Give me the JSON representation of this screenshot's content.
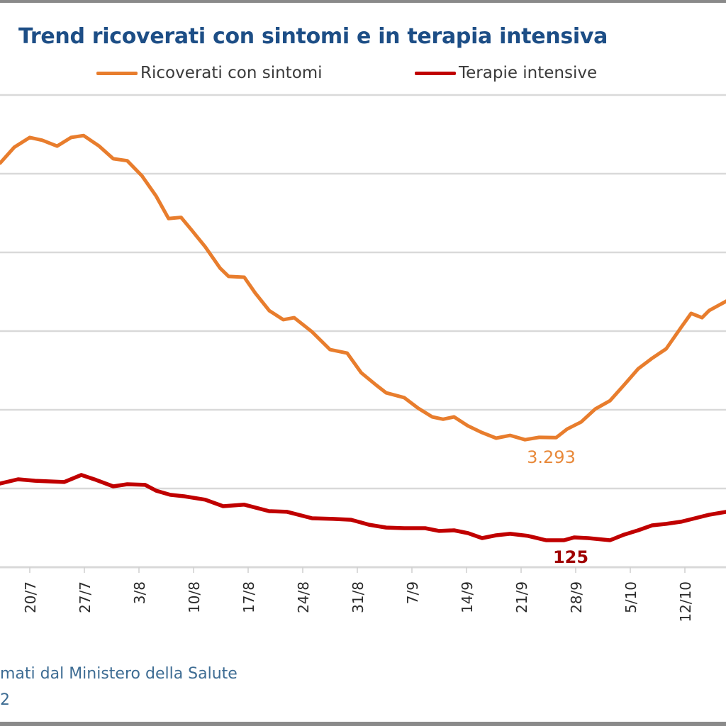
{
  "title": "Trend ricoverati con sintomi e in terapia intensiva",
  "legend": [
    {
      "label": "Ricoverati con sintomi",
      "color": "#e87d2d"
    },
    {
      "label": "Terapie intensive",
      "color": "#c00000"
    }
  ],
  "source_line1": "mati dal Ministero della Salute",
  "source_line2": "2",
  "chart_data": {
    "type": "line",
    "title": "Trend ricoverati con sintomi e in terapia intensiva",
    "xlabel": "",
    "ylabel": "",
    "grid": true,
    "legend_position": "top",
    "x_ticks": [
      "20/7",
      "27/7",
      "3/8",
      "10/8",
      "17/8",
      "24/8",
      "31/8",
      "7/9",
      "14/9",
      "21/9",
      "28/9",
      "5/10",
      "12/10"
    ],
    "x_range_days": [
      0,
      93
    ],
    "x_start_label": "16/7",
    "y_left_range": [
      0,
      12000
    ],
    "y_left_gridlines": [
      0,
      2000,
      4000,
      6000,
      8000,
      10000,
      12000
    ],
    "y_right_range": [
      0,
      1150
    ],
    "series": [
      {
        "name": "Ricoverati con sintomi",
        "color": "#e87d2d",
        "axis": "left",
        "day": [
          0.2,
          2,
          4,
          5.6,
          7.5,
          9.3,
          10.9,
          12.9,
          14.7,
          16.5,
          18.4,
          20.2,
          21.8,
          23.4,
          24.7,
          26.5,
          28.4,
          29.5,
          31.5,
          32.9,
          34.7,
          36.5,
          37.9,
          40.2,
          42.5,
          44.7,
          46.5,
          48.4,
          49.7,
          52,
          53.8,
          55.6,
          57,
          58.4,
          60.2,
          62,
          63.8,
          65.6,
          67.5,
          69.3,
          71.5,
          72.9,
          74.7,
          76.5,
          78.4,
          80.2,
          82,
          83.8,
          85.6,
          87.5,
          88.8,
          90.2,
          91.1,
          93.3
        ],
        "values": [
          10270,
          10670,
          10920,
          10850,
          10700,
          10920,
          10970,
          10700,
          10380,
          10330,
          9940,
          9430,
          8860,
          8890,
          8580,
          8140,
          7600,
          7390,
          7370,
          6970,
          6520,
          6290,
          6340,
          5980,
          5530,
          5440,
          4940,
          4630,
          4430,
          4310,
          4040,
          3820,
          3760,
          3820,
          3590,
          3420,
          3280,
          3350,
          3240,
          3300,
          3293,
          3510,
          3690,
          4020,
          4230,
          4630,
          5040,
          5310,
          5550,
          6090,
          6450,
          6340,
          6520,
          6760
        ],
        "annotations": [
          {
            "label": "3.293",
            "day": 70.5,
            "value": 3293
          }
        ]
      },
      {
        "name": "Terapie intensive",
        "color": "#c00000",
        "axis": "right",
        "day": [
          0.2,
          2.5,
          4.7,
          8.4,
          10.6,
          12.5,
          14.7,
          16.5,
          18.8,
          20.2,
          22,
          23.8,
          26.5,
          28.8,
          31.5,
          34.7,
          37,
          40.2,
          42.9,
          45.2,
          47.5,
          49.7,
          52,
          54.7,
          56.5,
          58.4,
          60.2,
          62,
          63.8,
          65.6,
          67.9,
          70.2,
          72.5,
          73.8,
          75.6,
          78.4,
          80.2,
          82,
          83.8,
          85.6,
          87.5,
          89.3,
          91.1,
          93.3
        ],
        "values": [
          388,
          408,
          401,
          395,
          428,
          405,
          375,
          385,
          382,
          355,
          336,
          329,
          313,
          283,
          290,
          260,
          257,
          227,
          224,
          220,
          197,
          184,
          181,
          181,
          168,
          171,
          158,
          135,
          148,
          155,
          145,
          125,
          125,
          138,
          135,
          125,
          151,
          171,
          194,
          201,
          211,
          227,
          243,
          257
        ],
        "annotations": [
          {
            "label": "125",
            "day": 73,
            "value": 125
          }
        ]
      }
    ]
  }
}
